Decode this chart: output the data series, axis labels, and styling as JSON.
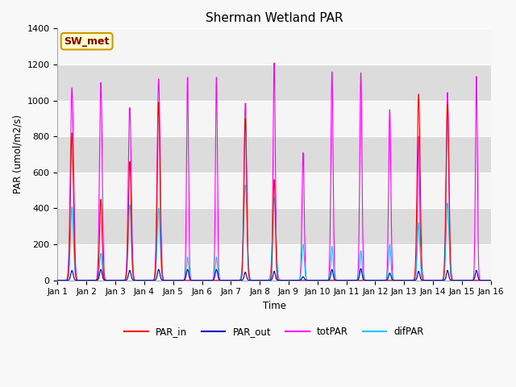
{
  "title": "Sherman Wetland PAR",
  "ylabel": "PAR (umol/m2/s)",
  "xlabel": "Time",
  "annotation": "SW_met",
  "ylim": [
    0,
    1400
  ],
  "days": 15,
  "background_color": "#ebebeb",
  "band_color_light": "#f5f5f5",
  "band_color_dark": "#dcdcdc",
  "grid_color": "#ffffff",
  "series": {
    "PAR_in": {
      "color": "#ff0000",
      "lw": 0.8
    },
    "PAR_out": {
      "color": "#0000bb",
      "lw": 0.8
    },
    "totPAR": {
      "color": "#ff00ff",
      "lw": 0.8
    },
    "difPAR": {
      "color": "#00ccff",
      "lw": 0.8
    }
  },
  "samples_per_day": 288,
  "peaks": [
    {
      "par_in": 820,
      "par_out": 55,
      "totPAR": 1070,
      "difPAR": 410,
      "wi": 0.12,
      "wo": 0.1,
      "wt": 0.13,
      "wd": 0.12
    },
    {
      "par_in": 450,
      "par_out": 60,
      "totPAR": 1100,
      "difPAR": 150,
      "wi": 0.1,
      "wo": 0.1,
      "wt": 0.11,
      "wd": 0.1
    },
    {
      "par_in": 660,
      "par_out": 55,
      "totPAR": 960,
      "difPAR": 420,
      "wi": 0.11,
      "wo": 0.1,
      "wt": 0.12,
      "wd": 0.12
    },
    {
      "par_in": 990,
      "par_out": 60,
      "totPAR": 1120,
      "difPAR": 400,
      "wi": 0.11,
      "wo": 0.1,
      "wt": 0.12,
      "wd": 0.12
    },
    {
      "par_in": 0,
      "par_out": 60,
      "totPAR": 1130,
      "difPAR": 130,
      "wi": 0.08,
      "wo": 0.1,
      "wt": 0.08,
      "wd": 0.08
    },
    {
      "par_in": 0,
      "par_out": 60,
      "totPAR": 1130,
      "difPAR": 130,
      "wi": 0.08,
      "wo": 0.1,
      "wt": 0.08,
      "wd": 0.08
    },
    {
      "par_in": 900,
      "par_out": 45,
      "totPAR": 985,
      "difPAR": 530,
      "wi": 0.11,
      "wo": 0.09,
      "wt": 0.11,
      "wd": 0.14
    },
    {
      "par_in": 560,
      "par_out": 50,
      "totPAR": 1210,
      "difPAR": 460,
      "wi": 0.1,
      "wo": 0.09,
      "wt": 0.09,
      "wd": 0.14
    },
    {
      "par_in": 0,
      "par_out": 20,
      "totPAR": 710,
      "difPAR": 200,
      "wi": 0.08,
      "wo": 0.09,
      "wt": 0.09,
      "wd": 0.1
    },
    {
      "par_in": 0,
      "par_out": 60,
      "totPAR": 1160,
      "difPAR": 190,
      "wi": 0.08,
      "wo": 0.09,
      "wt": 0.09,
      "wd": 0.09
    },
    {
      "par_in": 0,
      "par_out": 65,
      "totPAR": 1155,
      "difPAR": 165,
      "wi": 0.08,
      "wo": 0.09,
      "wt": 0.09,
      "wd": 0.09
    },
    {
      "par_in": 0,
      "par_out": 40,
      "totPAR": 950,
      "difPAR": 200,
      "wi": 0.08,
      "wo": 0.09,
      "wt": 0.09,
      "wd": 0.09
    },
    {
      "par_in": 1035,
      "par_out": 50,
      "totPAR": 800,
      "difPAR": 320,
      "wi": 0.12,
      "wo": 0.09,
      "wt": 0.09,
      "wd": 0.11
    },
    {
      "par_in": 980,
      "par_out": 55,
      "totPAR": 1045,
      "difPAR": 430,
      "wi": 0.12,
      "wo": 0.09,
      "wt": 0.1,
      "wd": 0.12
    },
    {
      "par_in": 0,
      "par_out": 55,
      "totPAR": 1135,
      "difPAR": 0,
      "wi": 0.08,
      "wo": 0.09,
      "wt": 0.08,
      "wd": 0.08
    }
  ]
}
